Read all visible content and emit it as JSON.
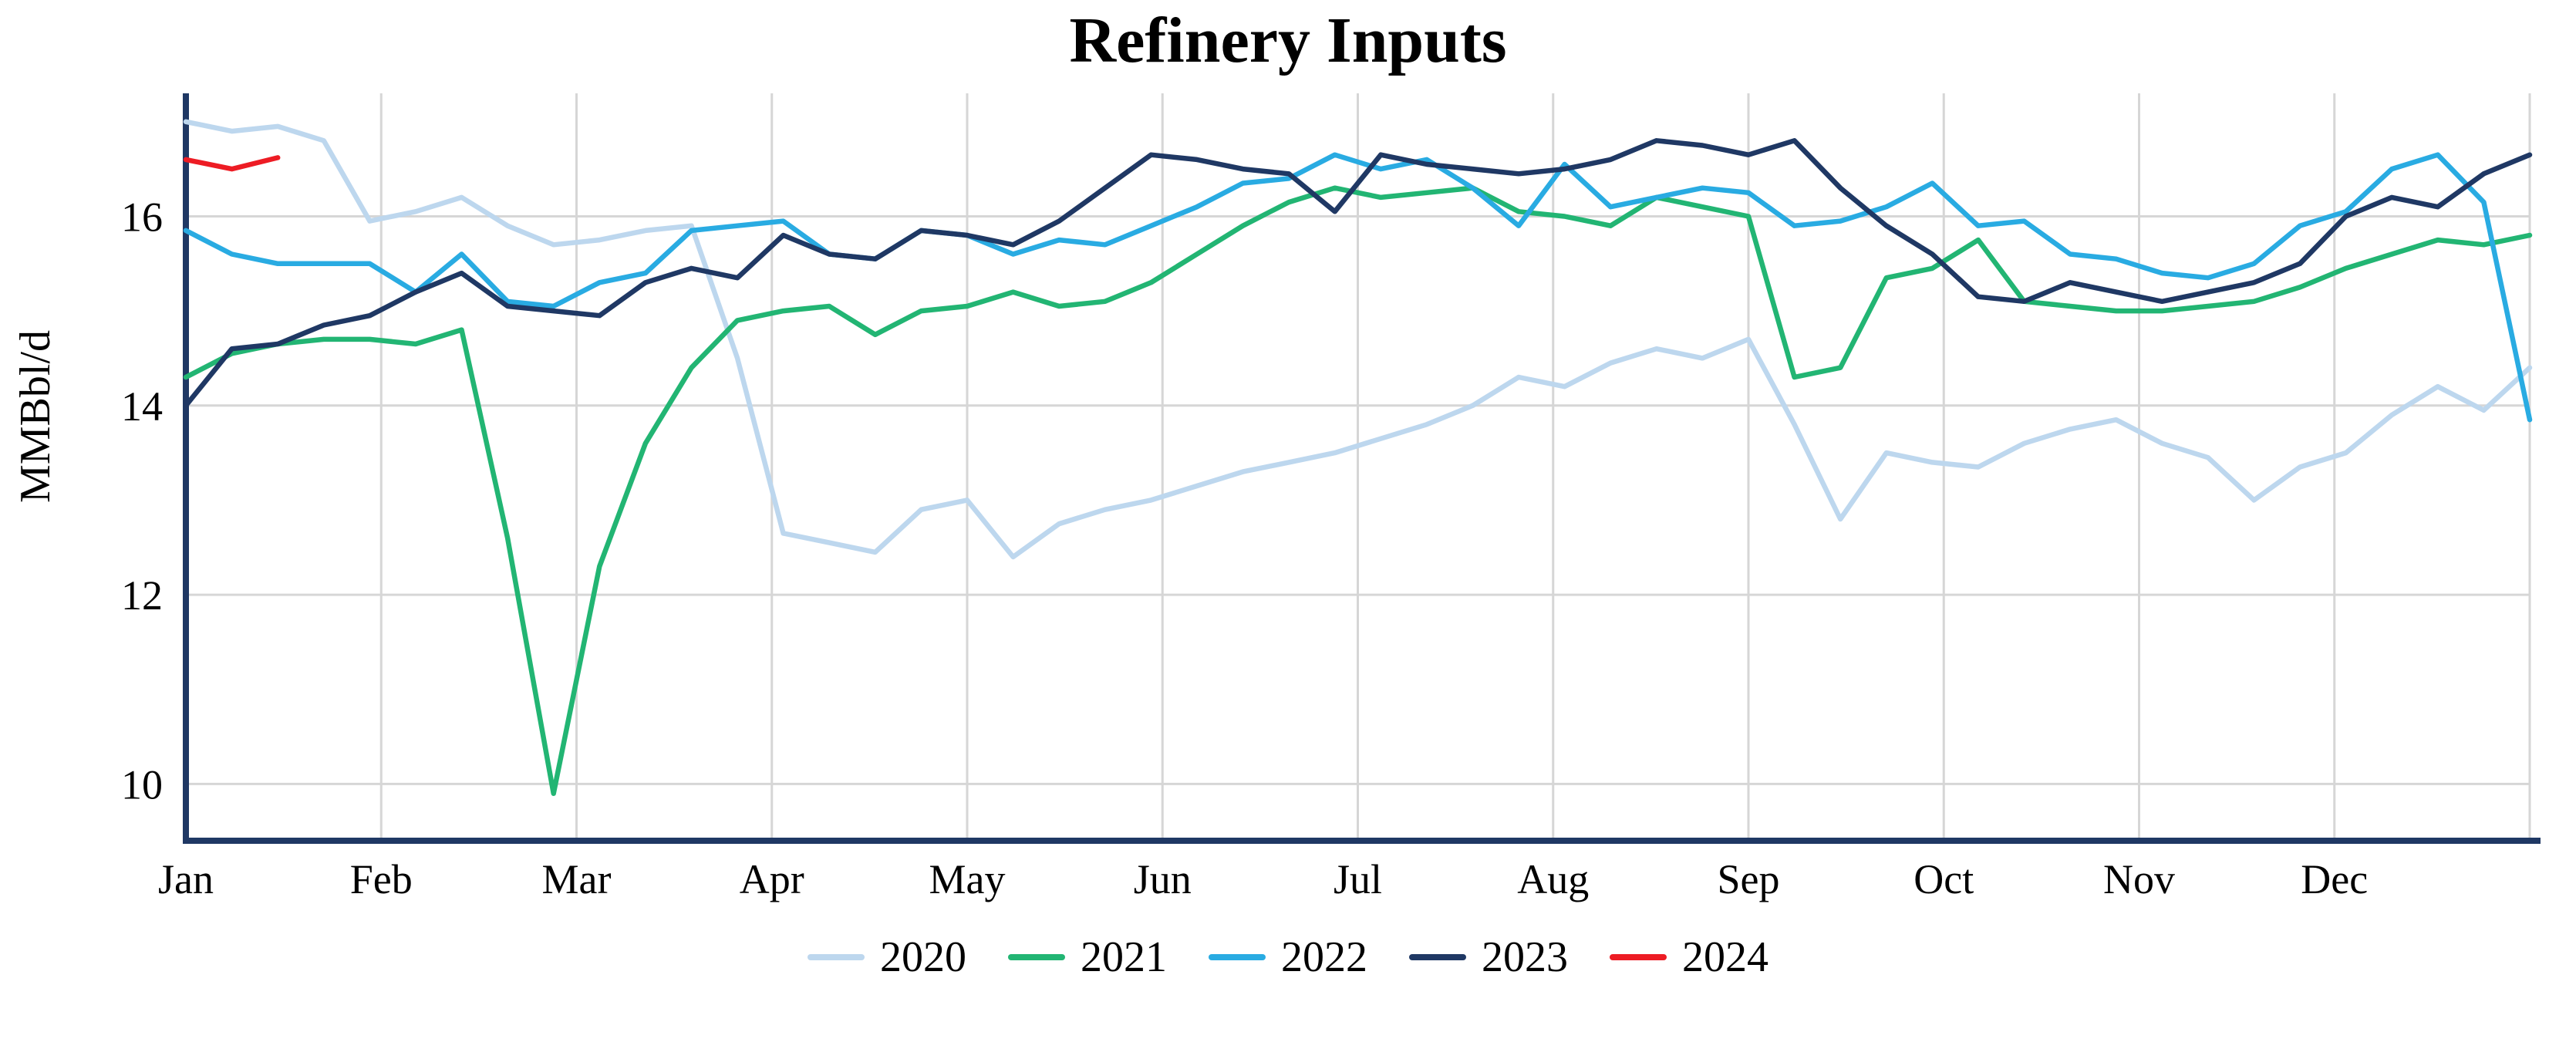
{
  "chart_data": {
    "type": "line",
    "title": "Refinery Inputs",
    "ylabel": "MMBbl/d",
    "xlabel": "",
    "x_unit": "week-of-year",
    "xtick_labels": [
      "Jan",
      "Feb",
      "Mar",
      "Apr",
      "May",
      "Jun",
      "Jul",
      "Aug",
      "Sep",
      "Oct",
      "Nov",
      "Dec"
    ],
    "yticks": [
      10,
      12,
      14,
      16
    ],
    "ylim": [
      9.4,
      17.3
    ],
    "weeks_per_year": 52,
    "grid": true,
    "legend_position": "bottom",
    "axis_color": "#1f3864",
    "grid_color": "#d6d6d6",
    "series": [
      {
        "name": "2020",
        "color": "#bdd7ee",
        "values": [
          17.0,
          16.9,
          16.95,
          16.8,
          15.95,
          16.05,
          16.2,
          15.9,
          15.7,
          15.75,
          15.85,
          15.9,
          14.5,
          12.65,
          12.55,
          12.45,
          12.9,
          13.0,
          12.4,
          12.75,
          12.9,
          13.0,
          13.15,
          13.3,
          13.4,
          13.5,
          13.65,
          13.8,
          14.0,
          14.3,
          14.2,
          14.45,
          14.6,
          14.5,
          14.7,
          13.8,
          12.8,
          13.5,
          13.4,
          13.35,
          13.6,
          13.75,
          13.85,
          13.6,
          13.45,
          13.0,
          13.35,
          13.5,
          13.9,
          14.2,
          13.95,
          14.4
        ]
      },
      {
        "name": "2021",
        "color": "#22b573",
        "values": [
          14.3,
          14.55,
          14.65,
          14.7,
          14.7,
          14.65,
          14.8,
          12.6,
          9.9,
          12.3,
          13.6,
          14.4,
          14.9,
          15.0,
          15.05,
          14.75,
          15.0,
          15.05,
          15.2,
          15.05,
          15.1,
          15.3,
          15.6,
          15.9,
          16.15,
          16.3,
          16.2,
          16.25,
          16.3,
          16.05,
          16.0,
          15.9,
          16.2,
          16.1,
          16.0,
          14.3,
          14.4,
          15.35,
          15.45,
          15.75,
          15.1,
          15.05,
          15.0,
          15.0,
          15.05,
          15.1,
          15.25,
          15.45,
          15.6,
          15.75,
          15.7,
          15.8
        ]
      },
      {
        "name": "2022",
        "color": "#29abe2",
        "values": [
          15.85,
          15.6,
          15.5,
          15.5,
          15.5,
          15.2,
          15.6,
          15.1,
          15.05,
          15.3,
          15.4,
          15.85,
          15.9,
          15.95,
          15.6,
          15.55,
          15.85,
          15.8,
          15.6,
          15.75,
          15.7,
          15.9,
          16.1,
          16.35,
          16.4,
          16.65,
          16.5,
          16.6,
          16.3,
          15.9,
          16.55,
          16.1,
          16.2,
          16.3,
          16.25,
          15.9,
          15.95,
          16.1,
          16.35,
          15.9,
          15.95,
          15.6,
          15.55,
          15.4,
          15.35,
          15.5,
          15.9,
          16.05,
          16.5,
          16.65,
          16.15,
          13.85
        ]
      },
      {
        "name": "2023",
        "color": "#1f3864",
        "values": [
          14.0,
          14.6,
          14.65,
          14.85,
          14.95,
          15.2,
          15.4,
          15.05,
          15.0,
          14.95,
          15.3,
          15.45,
          15.35,
          15.8,
          15.6,
          15.55,
          15.85,
          15.8,
          15.7,
          15.95,
          16.3,
          16.65,
          16.6,
          16.5,
          16.45,
          16.05,
          16.65,
          16.55,
          16.5,
          16.45,
          16.5,
          16.6,
          16.8,
          16.75,
          16.65,
          16.8,
          16.3,
          15.9,
          15.6,
          15.15,
          15.1,
          15.3,
          15.2,
          15.1,
          15.2,
          15.3,
          15.5,
          16.0,
          16.2,
          16.1,
          16.45,
          16.65
        ]
      },
      {
        "name": "2024",
        "color": "#ed1c24",
        "values": [
          16.6,
          16.5,
          16.62
        ]
      }
    ]
  }
}
